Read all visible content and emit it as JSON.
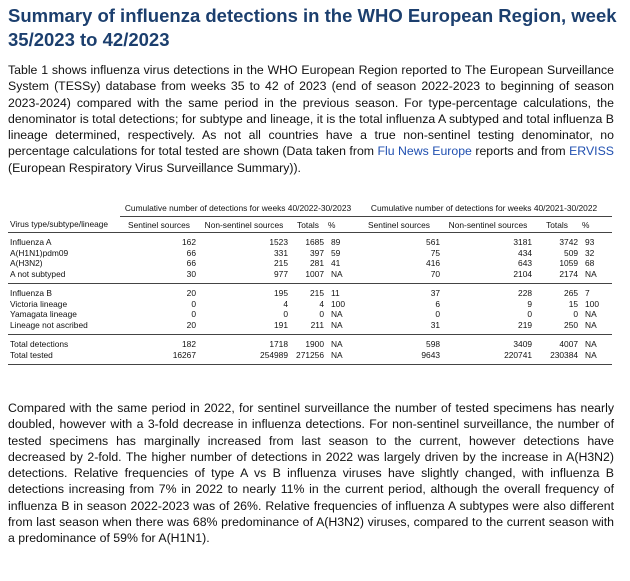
{
  "title": "Summary of influenza detections in the WHO European Region, week 35/2023 to 42/2023",
  "intro": [
    "Table 1 shows influenza virus detections in the WHO European Region reported to The European Surveillance System (TESSy) database from weeks 35 to 42 of 2023 (end of season 2022-2023 to beginning of season 2023-2024) compared with the same period in the previous season. For type-percentage calculations, the denominator is total detections; for subtype and lineage, it is the total influenza A subtyped and total influenza B lineage determined, respectively. As not all countries have a true non-sentinel testing denominator, no percentage calculations for total tested are shown (Data taken from ",
    "Flu News Europe",
    " reports and from ",
    "ERVISS",
    " (European Respiratory Virus Surveillance Summary))."
  ],
  "table": {
    "groups": [
      "Cumulative number of detections for weeks 40/2022-30/2023",
      "Cumulative number of detections for weeks 40/2021-30/2022"
    ],
    "columns": [
      "Virus type/subtype/lineage",
      "Sentinel sources",
      "Non-sentinel sources",
      "Totals",
      "%",
      "Sentinel sources",
      "Non-sentinel sources",
      "Totals",
      "%"
    ],
    "sections": [
      [
        [
          "Influenza A",
          162,
          1523,
          1685,
          89,
          561,
          3181,
          3742,
          93
        ],
        [
          "A(H1N1)pdm09",
          66,
          331,
          397,
          59,
          75,
          434,
          509,
          32
        ],
        [
          "A(H3N2)",
          66,
          215,
          281,
          41,
          416,
          643,
          1059,
          68
        ],
        [
          "A not subtyped",
          30,
          977,
          1007,
          "NA",
          70,
          2104,
          2174,
          "NA"
        ]
      ],
      [
        [
          "Influenza B",
          20,
          195,
          215,
          11,
          37,
          228,
          265,
          7
        ],
        [
          "Victoria lineage",
          0,
          4,
          4,
          100,
          6,
          9,
          15,
          100
        ],
        [
          "Yamagata lineage",
          0,
          0,
          0,
          "NA",
          0,
          0,
          0,
          "NA"
        ],
        [
          "Lineage not ascribed",
          20,
          191,
          211,
          "NA",
          31,
          219,
          250,
          "NA"
        ]
      ],
      [
        [
          "Total detections",
          182,
          1718,
          1900,
          "NA",
          598,
          3409,
          4007,
          "NA"
        ],
        [
          "Total tested",
          16267,
          254989,
          271256,
          "NA",
          9643,
          220741,
          230384,
          "NA"
        ]
      ]
    ]
  },
  "summary": "Compared with the same period in 2022, for sentinel surveillance the number of tested specimens has nearly doubled, however with a 3-fold decrease in influenza detections. For non-sentinel surveillance, the number of tested specimens has marginally increased from last season to the current, however detections have decreased by 2-fold. The higher number of detections in 2022 was largely driven by the increase in A(H3N2) detections. Relative frequencies of type A vs B influenza viruses have slightly changed, with influenza B detections increasing from 7% in 2022 to nearly 11% in the current period, although the overall frequency of influenza B in season 2022-2023 was of 26%. Relative frequencies of influenza A subtypes were also different from last season when there was 68% predominance of A(H3N2) viruses, compared to the current season with a predominance of 59% for A(H1N1)."
}
